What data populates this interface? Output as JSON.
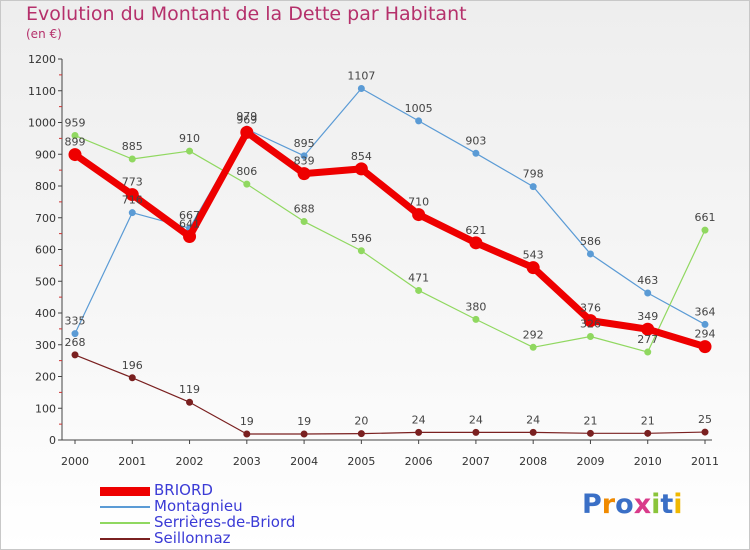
{
  "header": {
    "title": "Evolution du Montant de la Dette par Habitant",
    "subtitle": "(en €)"
  },
  "chart_data": {
    "type": "line",
    "title": "Evolution du Montant de la Dette par Habitant",
    "subtitle": "(en €)",
    "xlabel": "",
    "ylabel": "",
    "x": [
      "2000",
      "2001",
      "2002",
      "2003",
      "2004",
      "2005",
      "2006",
      "2007",
      "2008",
      "2009",
      "2010",
      "2011"
    ],
    "ylim": [
      0,
      1200
    ],
    "yticks": [
      0,
      100,
      200,
      300,
      400,
      500,
      600,
      700,
      800,
      900,
      1000,
      1100,
      1200
    ],
    "grid": false,
    "legend_position": "bottom-left",
    "series": [
      {
        "name": "BRIORD",
        "color": "#ee0000",
        "values": [
          899,
          773,
          641,
          969,
          839,
          854,
          710,
          621,
          543,
          376,
          349,
          294
        ]
      },
      {
        "name": "Montagnieu",
        "color": "#5b9bd5",
        "values": [
          335,
          716,
          667,
          979,
          895,
          1107,
          1005,
          903,
          798,
          586,
          463,
          364
        ]
      },
      {
        "name": "Serrières-de-Briord",
        "color": "#90d860",
        "values": [
          959,
          885,
          910,
          806,
          688,
          596,
          471,
          380,
          292,
          326,
          277,
          661
        ]
      },
      {
        "name": "Seillonnaz",
        "color": "#7a2020",
        "values": [
          268,
          196,
          119,
          19,
          19,
          20,
          24,
          24,
          24,
          21,
          21,
          25
        ]
      }
    ]
  },
  "legend": {
    "items": [
      {
        "label": "BRIORD",
        "color": "#ee0000"
      },
      {
        "label": "Montagnieu",
        "color": "#5b9bd5"
      },
      {
        "label": "Serrières-de-Briord",
        "color": "#90d860"
      },
      {
        "label": "Seillonnaz",
        "color": "#7a2020"
      }
    ]
  },
  "logo": {
    "text": "Proxiti",
    "letter_colors": [
      "#3a6fc6",
      "#f08a00",
      "#3a6fc6",
      "#d93a8a",
      "#8ac43a",
      "#3a6fc6",
      "#f0b800"
    ]
  }
}
